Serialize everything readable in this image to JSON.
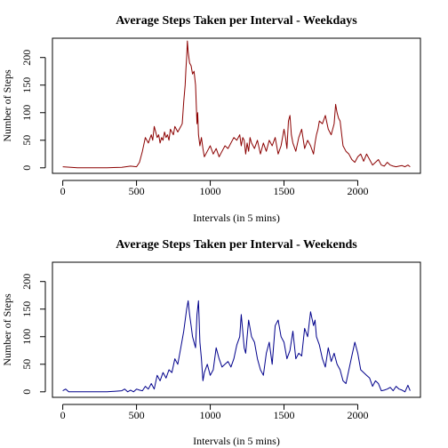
{
  "chart_data": [
    {
      "type": "line",
      "title": "Average Steps Taken per Interval - Weekdays",
      "xlabel": "Intervals (in 5 mins)",
      "ylabel": "Number of Steps",
      "xlim": [
        -70,
        2425
      ],
      "ylim": [
        -10,
        235
      ],
      "xticks": [
        0,
        500,
        1000,
        1500,
        2000
      ],
      "yticks": [
        0,
        50,
        100,
        150,
        200
      ],
      "grid": false,
      "color": "#8B0000",
      "series": [
        {
          "x": [
            0,
            100,
            200,
            300,
            400,
            460,
            500,
            520,
            540,
            560,
            580,
            600,
            610,
            620,
            630,
            640,
            650,
            660,
            670,
            680,
            690,
            700,
            710,
            720,
            730,
            740,
            750,
            760,
            770,
            780,
            790,
            800,
            810,
            820,
            830,
            835,
            840,
            845,
            850,
            860,
            870,
            880,
            890,
            900,
            910,
            915,
            920,
            930,
            940,
            950,
            960,
            980,
            1000,
            1020,
            1040,
            1060,
            1080,
            1100,
            1120,
            1140,
            1160,
            1180,
            1200,
            1210,
            1220,
            1230,
            1240,
            1250,
            1260,
            1270,
            1280,
            1300,
            1320,
            1340,
            1360,
            1380,
            1400,
            1420,
            1440,
            1460,
            1480,
            1500,
            1510,
            1520,
            1530,
            1540,
            1550,
            1560,
            1580,
            1600,
            1620,
            1640,
            1660,
            1680,
            1700,
            1710,
            1720,
            1730,
            1740,
            1760,
            1780,
            1800,
            1820,
            1840,
            1850,
            1860,
            1870,
            1880,
            1900,
            1920,
            1940,
            1960,
            1980,
            2000,
            2020,
            2040,
            2060,
            2080,
            2100,
            2120,
            2140,
            2160,
            2180,
            2200,
            2220,
            2240,
            2260,
            2280,
            2300,
            2320,
            2340,
            2355
          ],
          "y": [
            2,
            0,
            0,
            0,
            1,
            3,
            2,
            10,
            30,
            55,
            45,
            60,
            50,
            75,
            65,
            55,
            60,
            45,
            55,
            50,
            65,
            55,
            60,
            50,
            70,
            65,
            60,
            75,
            70,
            65,
            70,
            75,
            80,
            120,
            150,
            180,
            200,
            230,
            210,
            190,
            185,
            170,
            175,
            150,
            80,
            100,
            60,
            40,
            55,
            35,
            20,
            30,
            40,
            25,
            35,
            20,
            30,
            40,
            35,
            45,
            55,
            50,
            60,
            40,
            55,
            50,
            25,
            45,
            30,
            55,
            45,
            35,
            50,
            25,
            45,
            30,
            50,
            40,
            55,
            25,
            40,
            70,
            55,
            35,
            85,
            95,
            60,
            45,
            30,
            55,
            70,
            35,
            50,
            40,
            25,
            45,
            60,
            70,
            85,
            80,
            95,
            70,
            60,
            80,
            115,
            100,
            90,
            85,
            40,
            30,
            25,
            15,
            10,
            20,
            25,
            12,
            25,
            15,
            5,
            10,
            15,
            5,
            3,
            10,
            5,
            3,
            2,
            3,
            4,
            2,
            5,
            2
          ]
        }
      ]
    },
    {
      "type": "line",
      "title": "Average Steps Taken per Interval - Weekends",
      "xlabel": "Intervals (in 5 mins)",
      "ylabel": "Number of Steps",
      "xlim": [
        -70,
        2425
      ],
      "ylim": [
        -10,
        235
      ],
      "xticks": [
        0,
        500,
        1000,
        1500,
        2000
      ],
      "yticks": [
        0,
        50,
        100,
        150,
        200
      ],
      "grid": false,
      "color": "#00008B",
      "series": [
        {
          "x": [
            0,
            20,
            40,
            100,
            200,
            300,
            400,
            420,
            440,
            460,
            480,
            500,
            520,
            540,
            560,
            580,
            600,
            620,
            640,
            660,
            680,
            700,
            720,
            740,
            760,
            780,
            800,
            820,
            840,
            850,
            860,
            870,
            880,
            900,
            910,
            920,
            930,
            940,
            950,
            960,
            980,
            1000,
            1020,
            1040,
            1060,
            1080,
            1100,
            1120,
            1140,
            1160,
            1180,
            1200,
            1210,
            1220,
            1230,
            1240,
            1260,
            1280,
            1300,
            1320,
            1340,
            1360,
            1380,
            1400,
            1420,
            1440,
            1460,
            1480,
            1500,
            1520,
            1540,
            1560,
            1580,
            1600,
            1620,
            1640,
            1660,
            1680,
            1700,
            1710,
            1720,
            1740,
            1760,
            1780,
            1800,
            1820,
            1840,
            1860,
            1880,
            1900,
            1920,
            1940,
            1960,
            1980,
            2000,
            2020,
            2040,
            2060,
            2080,
            2100,
            2120,
            2140,
            2160,
            2180,
            2200,
            2220,
            2240,
            2260,
            2280,
            2300,
            2320,
            2340,
            2355
          ],
          "y": [
            2,
            5,
            0,
            0,
            0,
            0,
            2,
            5,
            0,
            3,
            0,
            5,
            3,
            2,
            10,
            5,
            15,
            5,
            30,
            20,
            35,
            25,
            40,
            35,
            60,
            50,
            80,
            110,
            150,
            165,
            140,
            120,
            100,
            80,
            140,
            165,
            90,
            60,
            20,
            35,
            50,
            30,
            40,
            80,
            60,
            45,
            50,
            55,
            45,
            60,
            85,
            100,
            140,
            110,
            80,
            70,
            130,
            100,
            90,
            60,
            40,
            30,
            70,
            90,
            50,
            120,
            130,
            100,
            90,
            60,
            75,
            110,
            60,
            70,
            65,
            115,
            100,
            145,
            120,
            130,
            100,
            85,
            60,
            45,
            80,
            55,
            70,
            50,
            40,
            20,
            15,
            40,
            65,
            90,
            70,
            40,
            35,
            30,
            25,
            10,
            20,
            15,
            2,
            3,
            5,
            8,
            2,
            10,
            5,
            3,
            0,
            12,
            2
          ]
        }
      ]
    }
  ]
}
